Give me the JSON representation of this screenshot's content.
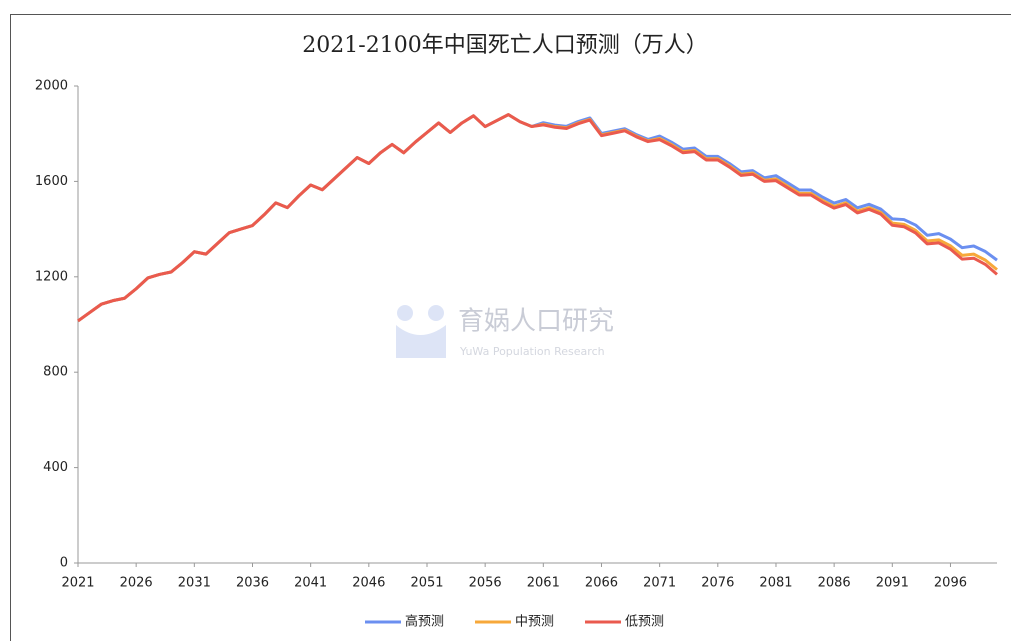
{
  "chart_data": {
    "type": "line",
    "title": "2021-2100年中国死亡人口预测（万人）",
    "categories": [
      "2021",
      null,
      null,
      null,
      null,
      "2026",
      null,
      null,
      null,
      null,
      "2031",
      null,
      null,
      null,
      null,
      "2036",
      null,
      null,
      null,
      null,
      "2041",
      null,
      null,
      null,
      null,
      "2046",
      null,
      null,
      null,
      null,
      "2051",
      null,
      null,
      null,
      null,
      "2056",
      null,
      null,
      null,
      null,
      "2061",
      null,
      null,
      null,
      null,
      "2066",
      null,
      null,
      null,
      null,
      "2071",
      null,
      null,
      null,
      null,
      "2076",
      null,
      null,
      null,
      null,
      "2081",
      null,
      null,
      null,
      null,
      "2086",
      null,
      null,
      null,
      null,
      "2091",
      null,
      null,
      null,
      null,
      "2096",
      null,
      null,
      null,
      null
    ],
    "series": [
      {
        "name": "高预测",
        "color": "#6b8ff0",
        "values": [
          1015,
          1050,
          1085,
          1100,
          1110,
          1150,
          1195,
          1210,
          1220,
          1260,
          1305,
          1295,
          1340,
          1385,
          1400,
          1415,
          1460,
          1510,
          1490,
          1540,
          1585,
          1565,
          1610,
          1655,
          1700,
          1675,
          1720,
          1755,
          1720,
          1765,
          1805,
          1845,
          1805,
          1845,
          1875,
          1830,
          1855,
          1880,
          1850,
          1830,
          1846,
          1836,
          1831,
          1851,
          1866,
          1801,
          1811,
          1821,
          1796,
          1776,
          1790,
          1765,
          1735,
          1740,
          1705,
          1705,
          1675,
          1640,
          1645,
          1615,
          1624,
          1594,
          1564,
          1564,
          1534,
          1509,
          1524,
          1489,
          1504,
          1484,
          1443,
          1440,
          1417,
          1374,
          1381,
          1358,
          1322,
          1329,
          1306,
          1270
        ]
      },
      {
        "name": "中预测",
        "color": "#f7a83a",
        "values": [
          1015,
          1050,
          1085,
          1100,
          1110,
          1150,
          1195,
          1210,
          1220,
          1260,
          1305,
          1295,
          1340,
          1385,
          1400,
          1415,
          1460,
          1510,
          1490,
          1540,
          1585,
          1565,
          1610,
          1655,
          1700,
          1675,
          1720,
          1755,
          1720,
          1765,
          1805,
          1845,
          1805,
          1845,
          1875,
          1830,
          1855,
          1880,
          1850,
          1830,
          1840,
          1830,
          1825,
          1845,
          1860,
          1795,
          1805,
          1815,
          1790,
          1770,
          1780,
          1755,
          1725,
          1730,
          1695,
          1695,
          1665,
          1630,
          1635,
          1605,
          1610,
          1580,
          1550,
          1550,
          1520,
          1495,
          1510,
          1475,
          1490,
          1470,
          1425,
          1420,
          1395,
          1350,
          1355,
          1330,
          1290,
          1295,
          1270,
          1230
        ]
      },
      {
        "name": "低预测",
        "color": "#ea5a4e",
        "values": [
          1015,
          1050,
          1085,
          1100,
          1110,
          1150,
          1195,
          1210,
          1220,
          1260,
          1305,
          1295,
          1340,
          1385,
          1400,
          1415,
          1460,
          1510,
          1490,
          1540,
          1585,
          1565,
          1610,
          1655,
          1700,
          1675,
          1720,
          1755,
          1720,
          1765,
          1805,
          1845,
          1805,
          1845,
          1875,
          1830,
          1855,
          1880,
          1850,
          1830,
          1837,
          1827,
          1822,
          1842,
          1857,
          1792,
          1802,
          1812,
          1787,
          1767,
          1775,
          1750,
          1720,
          1725,
          1690,
          1690,
          1660,
          1625,
          1630,
          1600,
          1603,
          1573,
          1543,
          1543,
          1513,
          1488,
          1503,
          1468,
          1483,
          1463,
          1416,
          1410,
          1384,
          1338,
          1342,
          1316,
          1274,
          1278,
          1252,
          1210
        ]
      }
    ],
    "ylim": [
      0,
      2000
    ],
    "yticks": [
      0,
      400,
      800,
      1200,
      1600,
      2000
    ],
    "grid": false,
    "legend": "bottom",
    "watermark": {
      "title": "育娲人口研究",
      "subtitle": "YuWa Population Research"
    }
  }
}
